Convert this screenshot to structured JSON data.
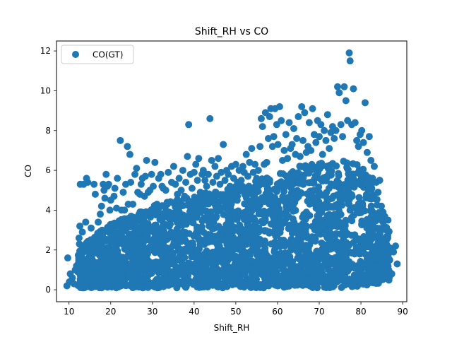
{
  "chart_data": {
    "type": "scatter",
    "title": "Shift_RH vs CO",
    "xlabel": "Shift_RH",
    "ylabel": "CO",
    "xlim": [
      7.0,
      91.0
    ],
    "ylim": [
      -0.6,
      12.5
    ],
    "xticks": [
      10,
      20,
      30,
      40,
      50,
      60,
      70,
      80,
      90
    ],
    "yticks": [
      0,
      2,
      4,
      6,
      8,
      10,
      12
    ],
    "grid": false,
    "legend": {
      "position": "top-left",
      "entries": [
        "CO(GT)"
      ]
    },
    "series": [
      {
        "name": "CO(GT)",
        "color": "#1f77b4",
        "marker": "circle",
        "points": [
          [
            9.5,
            0.2
          ],
          [
            9.7,
            1.6
          ],
          [
            10.1,
            0.4
          ],
          [
            10.3,
            0.8
          ],
          [
            10.8,
            0.6
          ],
          [
            11.2,
            0.3
          ],
          [
            11.5,
            1.0
          ],
          [
            11.8,
            1.2
          ],
          [
            12.1,
            0.9
          ],
          [
            12.4,
            2.6
          ],
          [
            12.5,
            2.3
          ],
          [
            12.6,
            3.2
          ],
          [
            12.7,
            5.3
          ],
          [
            12.9,
            1.8
          ],
          [
            13.0,
            2.0
          ],
          [
            13.2,
            2.9
          ],
          [
            13.5,
            5.3
          ],
          [
            13.8,
            1.5
          ],
          [
            14.0,
            3.4
          ],
          [
            14.2,
            5.6
          ],
          [
            14.5,
            5.4
          ],
          [
            14.6,
            2.1
          ],
          [
            15.0,
            1.3
          ],
          [
            15.3,
            3.1
          ],
          [
            15.6,
            2.4
          ],
          [
            16.0,
            5.3
          ],
          [
            16.3,
            4.8
          ],
          [
            16.8,
            2.7
          ],
          [
            17.0,
            3.4
          ],
          [
            17.3,
            1.9
          ],
          [
            17.5,
            3.8
          ],
          [
            17.8,
            4.2
          ],
          [
            18.2,
            5.3
          ],
          [
            18.4,
            5.0
          ],
          [
            18.6,
            4.6
          ],
          [
            18.9,
            5.8
          ],
          [
            19.2,
            5.2
          ],
          [
            19.5,
            5.3
          ],
          [
            19.8,
            4.0
          ],
          [
            20.0,
            4.5
          ],
          [
            20.5,
            3.3
          ],
          [
            20.8,
            4.7
          ],
          [
            21.0,
            5.1
          ],
          [
            21.4,
            4.1
          ],
          [
            21.6,
            5.6
          ],
          [
            22.1,
            3.2
          ],
          [
            22.3,
            7.5
          ],
          [
            22.6,
            4.0
          ],
          [
            23.0,
            4.9
          ],
          [
            23.3,
            4.0
          ],
          [
            23.6,
            5.3
          ],
          [
            24.0,
            7.2
          ],
          [
            24.2,
            4.3
          ],
          [
            24.6,
            6.8
          ],
          [
            24.8,
            5.4
          ],
          [
            25.3,
            4.3
          ],
          [
            25.5,
            3.3
          ],
          [
            25.8,
            5.8
          ],
          [
            26.2,
            6.1
          ],
          [
            26.5,
            4.9
          ],
          [
            27.0,
            4.8
          ],
          [
            27.3,
            5.3
          ],
          [
            27.6,
            5.6
          ],
          [
            28.1,
            4.7
          ],
          [
            28.3,
            5.7
          ],
          [
            28.6,
            6.5
          ],
          [
            29.0,
            4.9
          ],
          [
            29.4,
            5.0
          ],
          [
            29.8,
            5.8
          ],
          [
            30.2,
            5.2
          ],
          [
            30.6,
            6.4
          ],
          [
            31.1,
            4.3
          ],
          [
            31.5,
            5.6
          ],
          [
            32.0,
            5.8
          ],
          [
            32.3,
            5.2
          ],
          [
            32.6,
            5.1
          ],
          [
            33.2,
            5.0
          ],
          [
            33.8,
            5.9
          ],
          [
            34.2,
            4.4
          ],
          [
            34.6,
            5.4
          ],
          [
            35.1,
            6.2
          ],
          [
            35.5,
            5.3
          ],
          [
            36.0,
            4.8
          ],
          [
            36.4,
            5.6
          ],
          [
            36.9,
            5.0
          ],
          [
            37.3,
            6.0
          ],
          [
            37.7,
            4.7
          ],
          [
            38.0,
            5.4
          ],
          [
            38.4,
            6.7
          ],
          [
            38.7,
            8.3
          ],
          [
            39.1,
            5.8
          ],
          [
            39.5,
            5.1
          ],
          [
            40.0,
            5.9
          ],
          [
            40.4,
            6.3
          ],
          [
            40.8,
            5.5
          ],
          [
            41.1,
            6.6
          ],
          [
            41.5,
            4.9
          ],
          [
            41.9,
            5.8
          ],
          [
            42.2,
            6.0
          ],
          [
            42.6,
            5.5
          ],
          [
            43.0,
            5.2
          ],
          [
            43.4,
            5.8
          ],
          [
            43.8,
            8.6
          ],
          [
            44.2,
            6.5
          ],
          [
            44.5,
            5.4
          ],
          [
            45.0,
            6.2
          ],
          [
            45.4,
            5.7
          ],
          [
            45.8,
            6.6
          ],
          [
            46.2,
            5.3
          ],
          [
            46.5,
            5.9
          ],
          [
            47.0,
            7.3
          ],
          [
            47.4,
            5.5
          ],
          [
            47.8,
            6.0
          ],
          [
            48.2,
            5.8
          ],
          [
            48.6,
            5.2
          ],
          [
            49.0,
            6.2
          ],
          [
            49.5,
            5.6
          ],
          [
            50.0,
            6.3
          ],
          [
            50.4,
            5.4
          ],
          [
            50.8,
            6.0
          ],
          [
            51.3,
            5.5
          ],
          [
            51.7,
            6.2
          ],
          [
            52.0,
            5.9
          ],
          [
            52.5,
            6.8
          ],
          [
            52.9,
            5.7
          ],
          [
            53.3,
            6.4
          ],
          [
            53.8,
            7.1
          ],
          [
            54.2,
            5.9
          ],
          [
            54.6,
            6.3
          ],
          [
            55.0,
            5.6
          ],
          [
            55.4,
            6.0
          ],
          [
            55.8,
            7.2
          ],
          [
            56.1,
            8.6
          ],
          [
            56.4,
            8.2
          ],
          [
            56.8,
            6.3
          ],
          [
            57.1,
            8.9
          ],
          [
            57.4,
            6.4
          ],
          [
            57.8,
            7.6
          ],
          [
            58.1,
            8.7
          ],
          [
            58.4,
            9.1
          ],
          [
            58.8,
            7.2
          ],
          [
            59.1,
            7.7
          ],
          [
            59.4,
            9.1
          ],
          [
            59.8,
            8.3
          ],
          [
            60.1,
            7.3
          ],
          [
            60.5,
            9.2
          ],
          [
            60.9,
            8.5
          ],
          [
            61.2,
            6.5
          ],
          [
            61.6,
            7.0
          ],
          [
            62.0,
            7.8
          ],
          [
            62.4,
            6.6
          ],
          [
            62.8,
            8.4
          ],
          [
            63.1,
            7.1
          ],
          [
            63.5,
            7.3
          ],
          [
            63.9,
            8.1
          ],
          [
            64.3,
            6.8
          ],
          [
            64.6,
            7.6
          ],
          [
            65.0,
            8.7
          ],
          [
            65.4,
            6.7
          ],
          [
            65.8,
            9.2
          ],
          [
            66.1,
            7.5
          ],
          [
            66.5,
            8.9
          ],
          [
            66.9,
            6.9
          ],
          [
            67.3,
            7.2
          ],
          [
            67.6,
            8.4
          ],
          [
            68.0,
            7.0
          ],
          [
            68.4,
            9.1
          ],
          [
            68.8,
            7.8
          ],
          [
            69.2,
            7.4
          ],
          [
            69.6,
            8.5
          ],
          [
            70.0,
            7.7
          ],
          [
            70.4,
            8.3
          ],
          [
            70.8,
            6.8
          ],
          [
            71.2,
            8.0
          ],
          [
            71.6,
            7.5
          ],
          [
            72.0,
            8.8
          ],
          [
            72.4,
            7.1
          ],
          [
            72.8,
            7.9
          ],
          [
            73.2,
            8.2
          ],
          [
            73.6,
            7.6
          ],
          [
            74.0,
            8.0
          ],
          [
            74.4,
            10.2
          ],
          [
            74.8,
            9.9
          ],
          [
            75.2,
            8.3
          ],
          [
            75.6,
            7.7
          ],
          [
            76.0,
            10.2
          ],
          [
            76.4,
            9.5
          ],
          [
            76.8,
            8.5
          ],
          [
            77.2,
            11.9
          ],
          [
            77.4,
            11.5
          ],
          [
            77.8,
            8.3
          ],
          [
            78.2,
            10.1
          ],
          [
            78.6,
            8.4
          ],
          [
            79.0,
            7.5
          ],
          [
            79.4,
            7.2
          ],
          [
            79.8,
            7.8
          ],
          [
            80.2,
            8.0
          ],
          [
            80.6,
            7.4
          ],
          [
            81.0,
            9.4
          ],
          [
            81.5,
            6.9
          ],
          [
            82.0,
            7.7
          ],
          [
            82.4,
            6.5
          ],
          [
            82.8,
            5.6
          ],
          [
            83.2,
            6.2
          ],
          [
            83.7,
            5.4
          ],
          [
            84.1,
            4.9
          ],
          [
            84.5,
            5.5
          ],
          [
            84.9,
            4.2
          ],
          [
            85.3,
            3.9
          ],
          [
            85.7,
            3.1
          ],
          [
            86.1,
            2.6
          ],
          [
            86.5,
            3.5
          ],
          [
            86.9,
            1.5
          ],
          [
            87.4,
            0.8
          ],
          [
            87.8,
            1.9
          ],
          [
            88.3,
            2.2
          ],
          [
            88.7,
            1.3
          ]
        ],
        "dense_band": {
          "x": [
            12,
            15,
            20,
            25,
            30,
            35,
            40,
            45,
            50,
            55,
            60,
            65,
            70,
            75,
            80,
            84,
            87
          ],
          "low": [
            0.1,
            0.1,
            0.1,
            0.1,
            0.1,
            0.1,
            0.1,
            0.1,
            0.1,
            0.1,
            0.1,
            0.1,
            0.1,
            0.1,
            0.2,
            0.3,
            0.5
          ],
          "high": [
            1.8,
            2.6,
            3.3,
            3.8,
            4.2,
            4.5,
            4.7,
            5.0,
            5.2,
            5.5,
            5.9,
            6.2,
            6.4,
            6.5,
            6.3,
            5.0,
            2.8
          ]
        }
      }
    ]
  }
}
